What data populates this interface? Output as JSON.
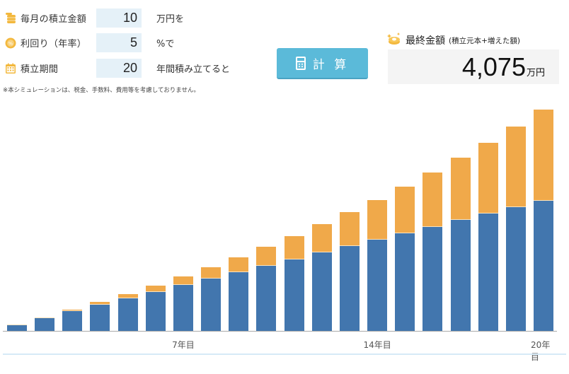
{
  "form": {
    "monthly": {
      "label": "毎月の積立金額",
      "value": "10",
      "unit": "万円を",
      "icon": "coins-icon"
    },
    "rate": {
      "label": "利回り（年率）",
      "value": "5",
      "unit": "%で",
      "icon": "percent-icon"
    },
    "period": {
      "label": "積立期間",
      "value": "20",
      "unit": "年間積み立てると",
      "icon": "calendar-icon"
    },
    "note": "※本シミュレーションは、税金、手数料、費用等を考慮しておりません。"
  },
  "calc_button": {
    "label": "計 算",
    "icon": "calculator-icon"
  },
  "result": {
    "title": "最終金額",
    "subtitle": "(積立元本+増えた額)",
    "value": "4,075",
    "unit": "万円",
    "icon": "coin-sparkle-icon"
  },
  "colors": {
    "principal": "#4276ae",
    "gain": "#f0a94a",
    "button": "#5bbad9",
    "input_bg": "#e5f1f8",
    "result_bg": "#f4f4f4"
  },
  "chart_data": {
    "type": "bar",
    "stacked": true,
    "title": "",
    "xlabel": "",
    "ylabel": "",
    "categories": [
      "1",
      "2",
      "3",
      "4",
      "5",
      "6",
      "7",
      "8",
      "9",
      "10",
      "11",
      "12",
      "13",
      "14",
      "15",
      "16",
      "17",
      "18",
      "19",
      "20"
    ],
    "tick_labels": [
      {
        "index": 6,
        "label": "7年目"
      },
      {
        "index": 13,
        "label": "14年目"
      },
      {
        "index": 19,
        "label": "20年目"
      }
    ],
    "series": [
      {
        "name": "積立元本",
        "color": "#4276ae",
        "values": [
          120,
          240,
          360,
          480,
          600,
          720,
          840,
          960,
          1080,
          1200,
          1320,
          1440,
          1560,
          1680,
          1800,
          1920,
          2040,
          2160,
          2280,
          2400
        ]
      },
      {
        "name": "増えた額",
        "color": "#f0a94a",
        "values": [
          3,
          13,
          29,
          51,
          81,
          118,
          163,
          217,
          279,
          350,
          431,
          521,
          623,
          735,
          859,
          995,
          1144,
          1307,
          1483,
          1675
        ]
      }
    ],
    "totals": [
      123,
      253,
      389,
      531,
      681,
      838,
      1003,
      1177,
      1359,
      1550,
      1751,
      1961,
      2183,
      2415,
      2659,
      2915,
      3184,
      3467,
      3763,
      4075
    ],
    "ylim": [
      0,
      4250
    ],
    "grid": false,
    "legend": "none",
    "unit": "万円"
  }
}
